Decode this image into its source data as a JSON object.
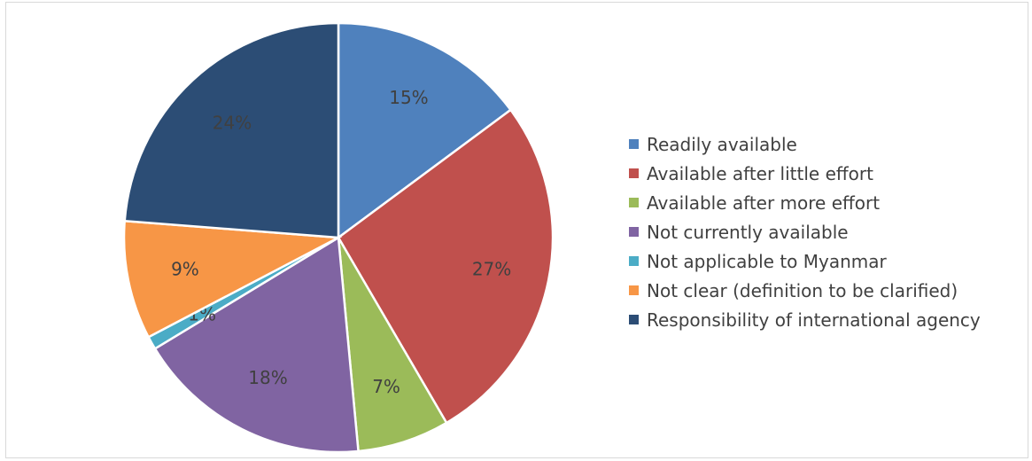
{
  "chart_data": {
    "type": "pie",
    "categories": [
      "Readily available",
      "Available after little effort",
      "Available after more effort",
      "Not currently available",
      "Not applicable to Myanmar",
      "Not clear (definition to be clarified)",
      "Responsibility of international agency"
    ],
    "values": [
      15,
      27,
      7,
      18,
      1,
      9,
      24
    ],
    "labels": [
      "15%",
      "27%",
      "7%",
      "18%",
      "1%",
      "9%",
      "24%"
    ],
    "colors": [
      "#4F81BD",
      "#C0504D",
      "#9BBB59",
      "#8064A2",
      "#4BACC6",
      "#F79646",
      "#2C4D75"
    ],
    "legend_position": "right"
  }
}
